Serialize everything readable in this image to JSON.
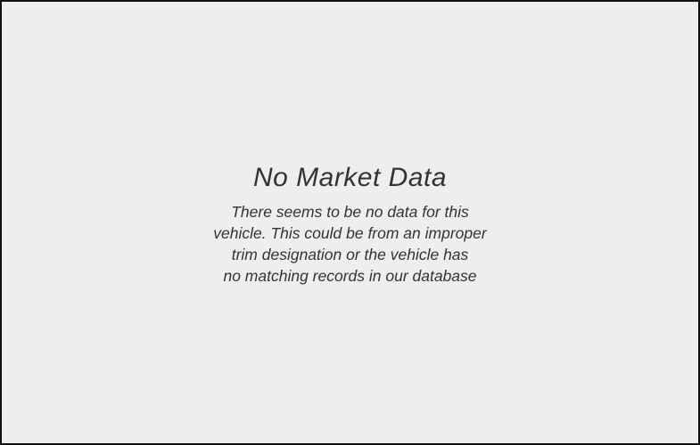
{
  "empty_state": {
    "title": "No Market Data",
    "message": "There seems to be no data for this\nvehicle. This could be from an improper\ntrim designation or the vehicle has\nno matching records in our database"
  },
  "colors": {
    "background": "#eeeeee",
    "border": "#111111",
    "text": "#333333"
  }
}
